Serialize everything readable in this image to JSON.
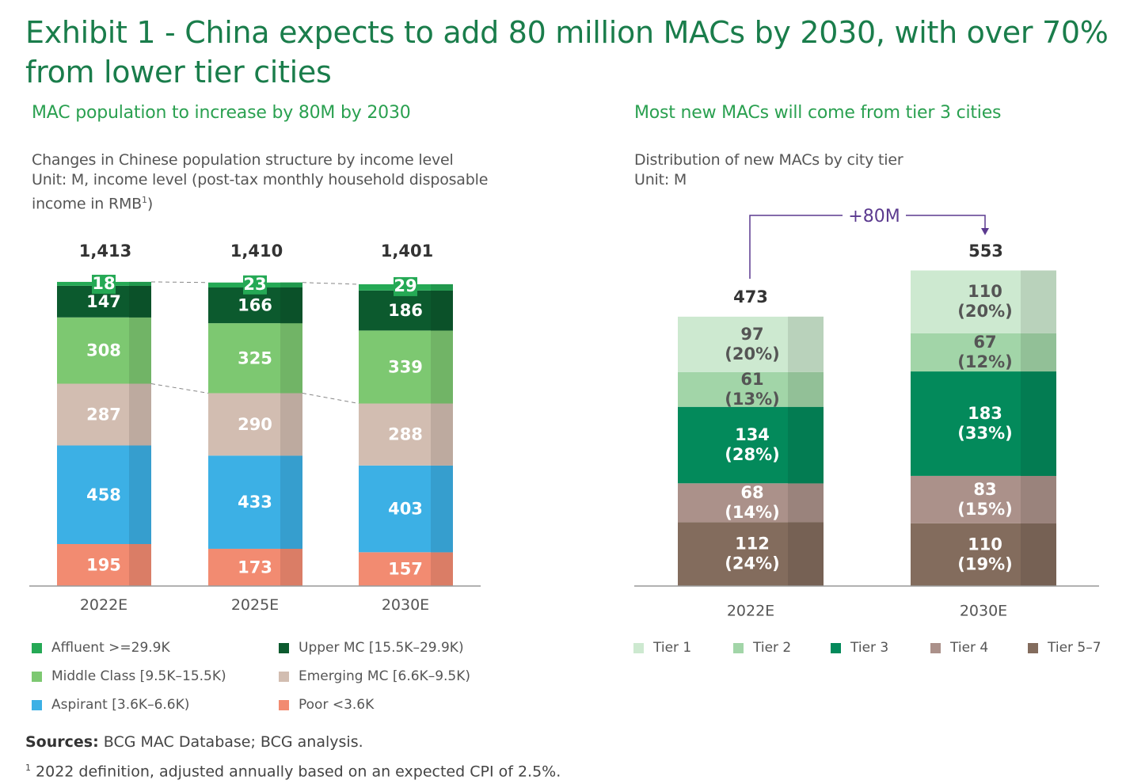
{
  "title": "Exhibit 1 - China expects to add 80 million MACs by 2030, with over 70% from lower tier cities",
  "left": {
    "subtitle": "MAC population to increase by 80M by 2030",
    "desc_line1": "Changes in Chinese population structure by income level",
    "desc_line2": "Unit: M, income level (post-tax monthly household disposable",
    "desc_line3": "income in RMB",
    "desc_sup": "1",
    "desc_end": ")"
  },
  "right": {
    "subtitle": "Most new MACs will come from tier 3 cities",
    "desc_line1": "Distribution of new MACs by city tier",
    "desc_line2": "Unit: M"
  },
  "sources_label": "Sources:",
  "sources_text": " BCG MAC Database; BCG analysis.",
  "footnote_mark": "1",
  "footnote_text": " 2022 definition, adjusted annually based on an expected CPI of 2.5%.",
  "chart_data": [
    {
      "type": "bar",
      "stacked": true,
      "categories": [
        "2022E",
        "2025E",
        "2030E"
      ],
      "totals": [
        "1,413",
        "1,410",
        "1,401"
      ],
      "series": [
        {
          "name": "Poor <3.6K",
          "color": "#f28b71",
          "values": [
            195,
            173,
            157
          ]
        },
        {
          "name": "Aspirant [3.6K–6.6K)",
          "color": "#3cb0e5",
          "values": [
            458,
            433,
            403
          ]
        },
        {
          "name": "Emerging MC [6.6K–9.5K)",
          "color": "#d2bdb1",
          "values": [
            287,
            290,
            288
          ]
        },
        {
          "name": "Middle Class [9.5K–15.5K)",
          "color": "#7dc871",
          "values": [
            308,
            325,
            339
          ]
        },
        {
          "name": "Upper MC [15.5K–29.9K)",
          "color": "#0c5a2e",
          "values": [
            147,
            166,
            186
          ]
        },
        {
          "name": "Affluent >=29.9K",
          "color": "#25a955",
          "values": [
            18,
            23,
            29
          ]
        }
      ],
      "legend_order": [
        "Affluent >=29.9K",
        "Upper MC [15.5K–29.9K)",
        "Middle Class [9.5K–15.5K)",
        "Emerging MC [6.6K–9.5K)",
        "Aspirant [3.6K–6.6K)",
        "Poor <3.6K"
      ],
      "legend": "bottom"
    },
    {
      "type": "bar",
      "stacked": true,
      "categories": [
        "2022E",
        "2030E"
      ],
      "totals": [
        "473",
        "553"
      ],
      "annotation": "+80M",
      "series": [
        {
          "name": "Tier 5–7",
          "color": "#836c5d",
          "values": [
            112,
            110
          ],
          "shares": [
            "(24%)",
            "(19%)"
          ]
        },
        {
          "name": "Tier 4",
          "color": "#ab918a",
          "values": [
            68,
            83
          ],
          "shares": [
            "(14%)",
            "(15%)"
          ]
        },
        {
          "name": "Tier 3",
          "color": "#038a5b",
          "values": [
            134,
            183
          ],
          "shares": [
            "(28%)",
            "(33%)"
          ]
        },
        {
          "name": "Tier 2",
          "color": "#a2d5a8",
          "values": [
            61,
            67
          ],
          "shares": [
            "(13%)",
            "(12%)"
          ]
        },
        {
          "name": "Tier 1",
          "color": "#cde9d0",
          "values": [
            97,
            110
          ],
          "shares": [
            "(20%)",
            "(20%)"
          ]
        }
      ],
      "legend_order": [
        "Tier 1",
        "Tier 2",
        "Tier 3",
        "Tier 4",
        "Tier 5–7"
      ],
      "legend": "bottom"
    }
  ]
}
